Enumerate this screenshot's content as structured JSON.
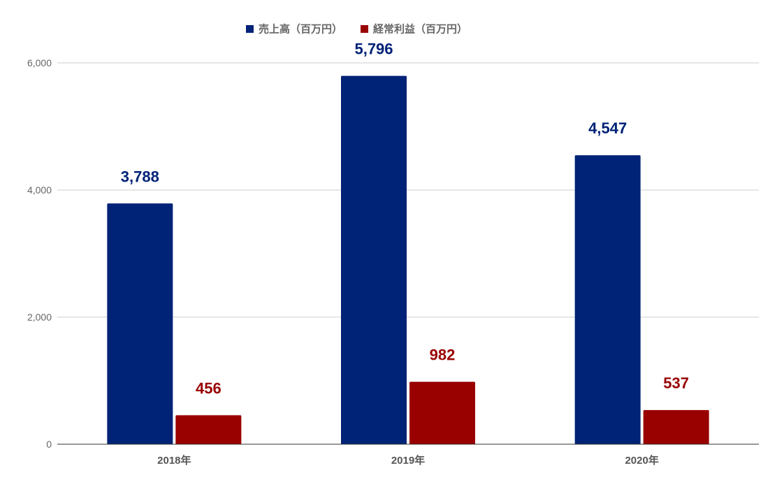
{
  "chart_data": {
    "type": "bar",
    "categories": [
      "2018年",
      "2019年",
      "2020年"
    ],
    "series": [
      {
        "name": "売上高（百万円）",
        "values": [
          3788,
          5796,
          4547
        ],
        "color": "#002277"
      },
      {
        "name": "経常利益（百万円）",
        "values": [
          456,
          982,
          537
        ],
        "color": "#990000"
      }
    ],
    "data_labels": [
      [
        "3,788",
        "5,796",
        "4,547"
      ],
      [
        "456",
        "982",
        "537"
      ]
    ],
    "yticks": [
      0,
      2000,
      4000,
      6000
    ],
    "ytick_labels": [
      "0",
      "2,000",
      "4,000",
      "6,000"
    ],
    "ylim": [
      0,
      6000
    ],
    "grid": true,
    "legend_position": "top-center",
    "title": "",
    "xlabel": "",
    "ylabel": ""
  }
}
